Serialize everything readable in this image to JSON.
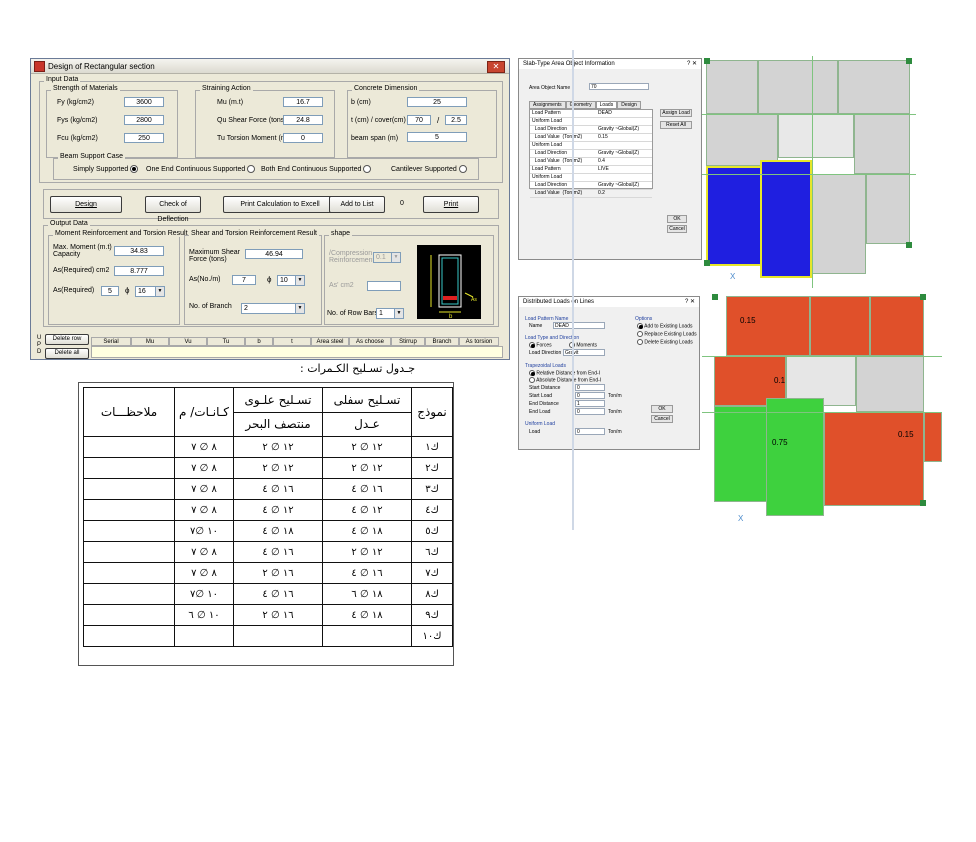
{
  "design_window": {
    "title": "Design of  Rectangular section",
    "close_glyph": "✕",
    "input_group": "Input Data",
    "materials": {
      "title": "Strength of Materials",
      "fy_label": "Fy (kg/cm2)",
      "fy_value": "3600",
      "fys_label": "Fys (kg/cm2)",
      "fys_value": "2800",
      "fcu_label": "Fcu (kg/cm2)",
      "fcu_value": "250"
    },
    "straining": {
      "title": "Straining Action",
      "mu_label": "Mu (m.t)",
      "mu_value": "16.7",
      "qu_label": "Qu Shear Force (tons)",
      "qu_value": "24.8",
      "tu_label": "Tu Torsion Moment (m.t)",
      "tu_value": "0"
    },
    "concrete": {
      "title": "Concrete Dimension",
      "b_label": "b (cm)",
      "b_value": "25",
      "t_label": "t (cm)  / cover(cm)",
      "t_value": "70",
      "slash": "/",
      "cover_value": "2.5",
      "span_label": "beam span (m)",
      "span_value": "5"
    },
    "support": {
      "title": "Beam Support Case",
      "opt1": "Simply Supported",
      "opt2": "One End Continuous Supported",
      "opt3": "Both End Continuous Supported",
      "opt4": "Cantilever Supported"
    },
    "buttons": {
      "design": "Design",
      "deflection": "Check of Deflection",
      "excel": "Print Calculation to Excell",
      "add": "Add  to List",
      "count": "0",
      "print": "Print"
    },
    "output_group": "Output Data",
    "moment": {
      "title": "Moment Reinforcement and Torsion Result",
      "max_label": "Max. Moment (m.t)\nCapacity",
      "max_value": "34.83",
      "asreq_label": "As(Required) cm2",
      "asreq_value": "8.777",
      "asreq2_label": "As(Required)",
      "bars_value": "5",
      "phi": "ϕ",
      "dia_value": "16"
    },
    "shear": {
      "title": "Shear and Torsion Reinforcement Result",
      "maxshear_label": "Maximum Shear\nForce (tons)",
      "maxshear_value": "46.94",
      "as_label": "As(No./m)",
      "as_value": "7",
      "phi": "ϕ",
      "dia_value": "10",
      "branch_label": "No. of Branch",
      "branch_value": "2"
    },
    "shape": {
      "title": "shape",
      "comp_label": "/Compression\nReinforcement",
      "comp_value": "0.1",
      "as_dash_label": "As' cm2",
      "rowbars_label": "No. of Row Bars",
      "rowbars_value": "1",
      "sketch_b": "b",
      "sketch_as": "As"
    },
    "grid": {
      "side_letters": "U P D",
      "delete_row": "Delete row",
      "delete_all": "Delete all",
      "columns": [
        "Serial",
        "Mu",
        "Vu",
        "Tu",
        "b",
        "t",
        "Area steel",
        "As choose",
        "Stirrup",
        "Branch",
        "As torsion"
      ]
    }
  },
  "rebar_table": {
    "title": "جـدول تسـليح الكـمرات :",
    "headers": {
      "model": "نموذج",
      "bottom": "تسـليح سفلى",
      "bottom_sub": "عـدل",
      "top": "تسـليح علـوى",
      "top_sub": "منتصف البحر",
      "stirrups": "كـانـات/ م",
      "notes": "ملاحظـــات"
    },
    "rows": [
      {
        "model": "ك١",
        "bottom": "١٢ ∅ ٢",
        "top": "١٢ ∅ ٢",
        "stirrups": "٨ ∅ ٧",
        "notes": ""
      },
      {
        "model": "ك٢",
        "bottom": "١٢ ∅ ٢",
        "top": "١٢ ∅ ٢",
        "stirrups": "٨ ∅ ٧",
        "notes": ""
      },
      {
        "model": "ك٣",
        "bottom": "١٦ ∅ ٤",
        "top": "١٦ ∅ ٤",
        "stirrups": "٨ ∅ ٧",
        "notes": ""
      },
      {
        "model": "ك٤",
        "bottom": "١٢ ∅ ٤",
        "top": "١٢ ∅ ٤",
        "stirrups": "٨ ∅ ٧",
        "notes": ""
      },
      {
        "model": "ك٥",
        "bottom": "١٨ ∅ ٤",
        "top": "١٨ ∅ ٤",
        "stirrups": "١٠ ∅٧",
        "notes": ""
      },
      {
        "model": "ك٦",
        "bottom": "١٢ ∅ ٢",
        "top": "١٦ ∅ ٤",
        "stirrups": "٨ ∅ ٧",
        "notes": ""
      },
      {
        "model": "ك٧",
        "bottom": "١٦ ∅ ٤",
        "top": "١٦ ∅ ٢",
        "stirrups": "٨ ∅ ٧",
        "notes": ""
      },
      {
        "model": "ك٨",
        "bottom": "١٨ ∅ ٦",
        "top": "١٦ ∅ ٤",
        "stirrups": "١٠ ∅٧",
        "notes": ""
      },
      {
        "model": "ك٩",
        "bottom": "١٨ ∅ ٤",
        "top": "١٦ ∅ ٢",
        "stirrups": "١٠ ∅ ٦",
        "notes": ""
      },
      {
        "model": "ك١٠",
        "bottom": "",
        "top": "",
        "stirrups": "",
        "notes": ""
      }
    ]
  },
  "slab_dialog": {
    "title": "Slab-Type Area Object Information",
    "ctrl": "?   ✕",
    "name_label": "Area Object Name",
    "name_value": "70",
    "tabs": [
      "Assignments",
      "Geometry",
      "Loads",
      "Design"
    ],
    "list": [
      {
        "k": "Load Pattern",
        "v": "DEAD"
      },
      {
        "k": "Uniform Load",
        "v": ""
      },
      {
        "k": "  Load Direction",
        "v": "Gravity  ~Global(Z)"
      },
      {
        "k": "  Load Value  (Ton/m2)",
        "v": "0.15"
      },
      {
        "k": "Uniform Load",
        "v": ""
      },
      {
        "k": "  Load Direction",
        "v": "Gravity  ~Global(Z)"
      },
      {
        "k": "  Load Value  (Ton/m2)",
        "v": "0.4"
      },
      {
        "k": "Load Pattern",
        "v": "LIVE"
      },
      {
        "k": "Uniform Load",
        "v": ""
      },
      {
        "k": "  Load Direction",
        "v": "Gravity  ~Global(Z)"
      },
      {
        "k": "  Load Value  (Ton/m2)",
        "v": "0.2"
      }
    ],
    "btn_assign": "Assign Load",
    "btn_reset": "Reset All",
    "btn_ok": "OK",
    "btn_cancel": "Cancel"
  },
  "dist_dialog": {
    "title": "Distributed Loads on Lines",
    "ctrl": "?   ✕",
    "pattern_label": "Load Pattern Name",
    "name_label": "Name",
    "name_value": "DEAD",
    "type_label": "Load Type and Direction",
    "forces": "Forces",
    "moments": "Moments",
    "dir_label": "Load Direction",
    "dir_value": "Gravit",
    "trap_label": "Trapezoidal Loads",
    "rel": "Relative Distance from End-I",
    "abs": "Absolute Distance from End-I",
    "start_dist": "Start Distance",
    "start_dist_value": "0",
    "start_load": "Start Load",
    "start_load_value": "0",
    "end_dist": "End Distance",
    "end_dist_value": "1",
    "end_load": "End Load",
    "end_load_value": "0",
    "unit": "Ton/m",
    "uniform_label": "Uniform Load",
    "load_label": "Load",
    "load_value": "0",
    "options_label": "Options",
    "opt_add": "Add to Existing Loads",
    "opt_replace": "Replace Existing Loads",
    "opt_delete": "Delete Existing Loads",
    "btn_ok": "OK",
    "btn_cancel": "Cancel"
  },
  "plans": {
    "axis_x": "X",
    "labels": [
      "0.15",
      "0.1",
      "0.75",
      "0.15"
    ],
    "colors": {
      "gray": "#d3d3d3",
      "blue": "#1f1fe0",
      "red": "#e0502a",
      "green": "#3ed13e"
    }
  }
}
